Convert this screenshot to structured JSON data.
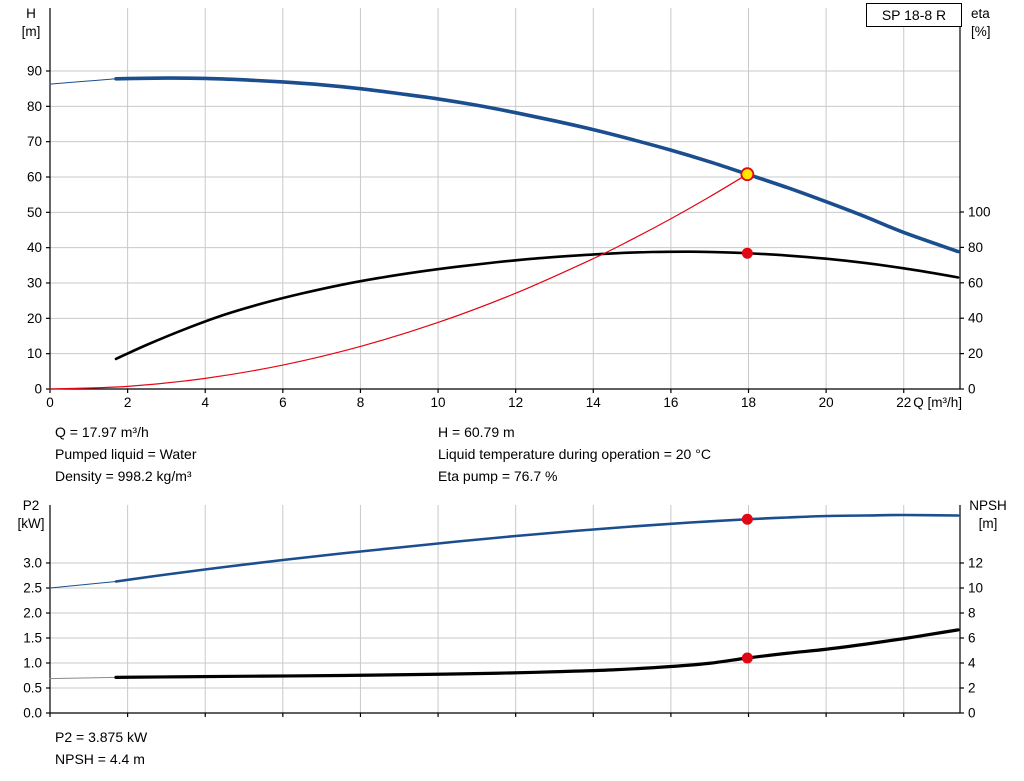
{
  "title_box": {
    "label": "SP 18-8 R"
  },
  "chart_data": [
    {
      "name": "performance-curves",
      "type": "line",
      "grid": true,
      "legend_position": "none",
      "x": {
        "title": "Q [m³/h]",
        "min": 0,
        "max": 23.45,
        "tick_labels": [
          "0",
          "2",
          "4",
          "6",
          "8",
          "10",
          "12",
          "14",
          "16",
          "18",
          "20",
          "22"
        ]
      },
      "y_left": {
        "title": "H",
        "unit": "[m]",
        "min": 0,
        "max": 107.83,
        "tick_labels": [
          "0",
          "10",
          "20",
          "30",
          "40",
          "50",
          "60",
          "70",
          "80",
          "90"
        ]
      },
      "y_right": {
        "title": "eta",
        "unit": "[%]",
        "min": 0,
        "max": 215.25,
        "tick_labels": [
          "0",
          "20",
          "40",
          "60",
          "80",
          "100"
        ]
      },
      "series": [
        {
          "name": "head-curve-lead",
          "axis": "left",
          "color": "#1b4e8f",
          "width": 1,
          "points": [
            [
              0,
              86.3
            ],
            [
              0.9,
              87.1
            ],
            [
              1.7,
              87.8
            ]
          ]
        },
        {
          "name": "head-curve",
          "axis": "left",
          "color": "#1b4e8f",
          "width": 3.6,
          "points": [
            [
              1.7,
              87.8
            ],
            [
              3,
              88.0
            ],
            [
              4,
              87.9
            ],
            [
              5,
              87.5
            ],
            [
              6,
              86.9
            ],
            [
              7,
              86.1
            ],
            [
              8,
              85.0
            ],
            [
              9,
              83.6
            ],
            [
              10,
              82.1
            ],
            [
              11,
              80.3
            ],
            [
              12,
              78.2
            ],
            [
              13,
              75.9
            ],
            [
              14,
              73.4
            ],
            [
              15,
              70.6
            ],
            [
              16,
              67.6
            ],
            [
              17,
              64.3
            ],
            [
              17.97,
              60.79
            ],
            [
              19,
              57.0
            ],
            [
              20,
              53.0
            ],
            [
              21,
              48.8
            ],
            [
              22,
              44.3
            ],
            [
              23.4,
              38.9
            ]
          ]
        },
        {
          "name": "efficiency-curve",
          "axis": "right",
          "color": "#000000",
          "width": 2.6,
          "points": [
            [
              1.7,
              17
            ],
            [
              2.5,
              25
            ],
            [
              3.5,
              34
            ],
            [
              4.5,
              42
            ],
            [
              5.5,
              48.5
            ],
            [
              6.5,
              54
            ],
            [
              7.5,
              58.8
            ],
            [
              8.5,
              62.8
            ],
            [
              9.5,
              66.2
            ],
            [
              10.5,
              69.1
            ],
            [
              11.5,
              71.6
            ],
            [
              12.5,
              73.7
            ],
            [
              13.5,
              75.3
            ],
            [
              14.5,
              76.6
            ],
            [
              15.5,
              77.4
            ],
            [
              16.5,
              77.6
            ],
            [
              17.2,
              77.3
            ],
            [
              17.97,
              76.7
            ],
            [
              19,
              75.4
            ],
            [
              20,
              73.6
            ],
            [
              21,
              71.2
            ],
            [
              22,
              68.2
            ],
            [
              23,
              64.6
            ],
            [
              23.4,
              63.0
            ]
          ]
        },
        {
          "name": "system-curve",
          "axis": "left",
          "color": "#e30613",
          "width": 1.2,
          "points": [
            [
              0,
              0
            ],
            [
              2,
              0.75
            ],
            [
              4,
              3.01
            ],
            [
              6,
              6.78
            ],
            [
              8,
              12.05
            ],
            [
              10,
              18.83
            ],
            [
              12,
              27.11
            ],
            [
              14,
              36.9
            ],
            [
              15,
              42.36
            ],
            [
              16,
              48.19
            ],
            [
              17,
              54.41
            ],
            [
              17.97,
              60.79
            ]
          ]
        }
      ],
      "markers": [
        {
          "name": "efficiency-point",
          "x": 17.97,
          "y": 76.7,
          "axis": "right",
          "fill": "#e30613",
          "stroke": "none",
          "stroke_width": 0,
          "r": 5.5
        },
        {
          "name": "duty-point",
          "x": 17.97,
          "y": 60.79,
          "axis": "left",
          "fill": "#ffe600",
          "stroke": "#e30613",
          "stroke_width": 1.8,
          "r": 6
        }
      ]
    },
    {
      "name": "power-npsh-curves",
      "type": "line",
      "grid": true,
      "legend_position": "none",
      "x": {
        "min": 0,
        "max": 23.45,
        "tick_labels": [
          "0",
          "2",
          "4",
          "6",
          "8",
          "10",
          "12",
          "14",
          "16",
          "18",
          "20",
          "22"
        ]
      },
      "y_left": {
        "title": "P2",
        "unit": "[kW]",
        "min": 0,
        "max": 4.16,
        "tick_labels": [
          "0.0",
          "0.5",
          "1.0",
          "1.5",
          "2.0",
          "2.5",
          "3.0"
        ]
      },
      "y_right": {
        "title": "NPSH",
        "unit": "[m]",
        "min": 0,
        "max": 16.64,
        "tick_labels": [
          "0",
          "2",
          "4",
          "6",
          "8",
          "10",
          "12"
        ]
      },
      "series": [
        {
          "name": "p2-curve-lead",
          "axis": "left",
          "color": "#1b4e8f",
          "width": 1,
          "points": [
            [
              0,
              2.5
            ],
            [
              1.7,
              2.63
            ]
          ]
        },
        {
          "name": "p2-curve",
          "axis": "left",
          "color": "#1b4e8f",
          "width": 2.6,
          "points": [
            [
              1.7,
              2.63
            ],
            [
              3,
              2.77
            ],
            [
              4.5,
              2.92
            ],
            [
              6,
              3.06
            ],
            [
              7.5,
              3.19
            ],
            [
              9,
              3.31
            ],
            [
              10.5,
              3.43
            ],
            [
              12,
              3.54
            ],
            [
              13.5,
              3.64
            ],
            [
              15,
              3.73
            ],
            [
              16.5,
              3.81
            ],
            [
              17.97,
              3.875
            ],
            [
              19,
              3.91
            ],
            [
              20,
              3.94
            ],
            [
              21,
              3.95
            ],
            [
              22,
              3.96
            ],
            [
              23.4,
              3.95
            ]
          ]
        },
        {
          "name": "npsh-curve-lead",
          "axis": "right",
          "color": "#8a8a8a",
          "width": 1,
          "points": [
            [
              0,
              2.75
            ],
            [
              1.7,
              2.85
            ]
          ]
        },
        {
          "name": "npsh-curve",
          "axis": "right",
          "color": "#000000",
          "width": 3.2,
          "points": [
            [
              1.7,
              2.85
            ],
            [
              3.5,
              2.9
            ],
            [
              5.5,
              2.95
            ],
            [
              7.5,
              3.0
            ],
            [
              9.5,
              3.08
            ],
            [
              11.5,
              3.18
            ],
            [
              13,
              3.3
            ],
            [
              14.5,
              3.45
            ],
            [
              16,
              3.72
            ],
            [
              17,
              3.98
            ],
            [
              17.97,
              4.4
            ],
            [
              19,
              4.78
            ],
            [
              20,
              5.1
            ],
            [
              21,
              5.5
            ],
            [
              22,
              5.95
            ],
            [
              23,
              6.45
            ],
            [
              23.4,
              6.65
            ]
          ]
        }
      ],
      "markers": [
        {
          "name": "p2-point",
          "x": 17.97,
          "y": 3.875,
          "axis": "left",
          "fill": "#e30613",
          "stroke": "none",
          "stroke_width": 0,
          "r": 5.5
        },
        {
          "name": "npsh-point",
          "x": 17.97,
          "y": 4.4,
          "axis": "right",
          "fill": "#e30613",
          "stroke": "none",
          "stroke_width": 0,
          "r": 5.5
        }
      ]
    }
  ],
  "captions": {
    "top": [
      {
        "left": "Q = 17.97 m³/h",
        "right": "H = 60.79 m"
      },
      {
        "left": "Pumped liquid = Water",
        "right": "Liquid temperature during operation = 20 °C"
      },
      {
        "left": "Density = 998.2 kg/m³",
        "right": "Eta pump = 76.7 %"
      }
    ],
    "bottom": [
      "P2 = 3.875 kW",
      "NPSH = 4.4 m"
    ]
  },
  "colors": {
    "curve_blue": "#1b4e8f",
    "curve_black": "#000000",
    "curve_red": "#e30613",
    "duty_yellow": "#ffe600",
    "gridline": "#c9c9c9"
  }
}
